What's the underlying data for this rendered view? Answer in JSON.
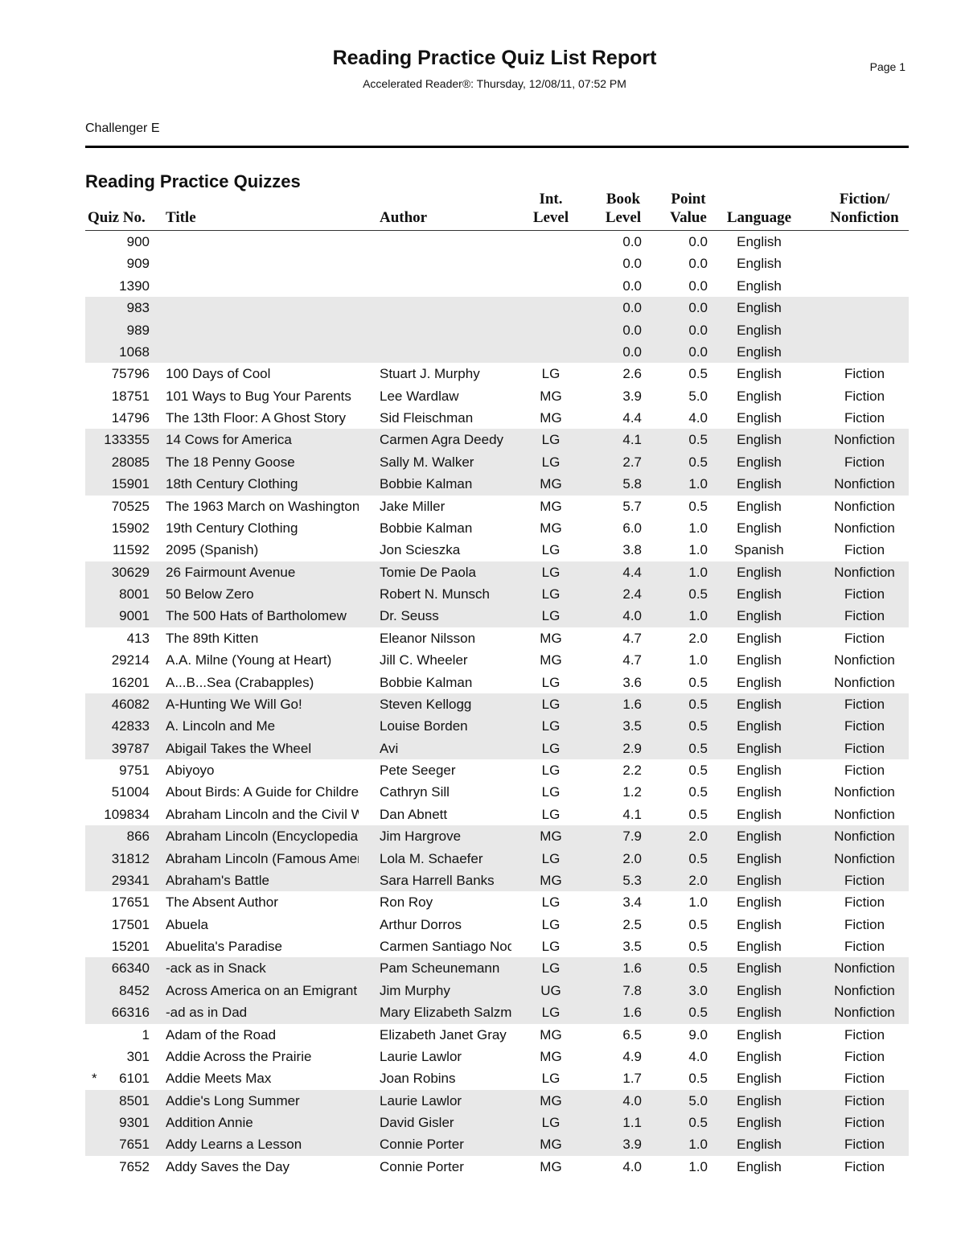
{
  "report": {
    "title": "Reading Practice Quiz List Report",
    "page": "Page 1",
    "subtitle": "Accelerated Reader®:  Thursday, 12/08/11, 07:52 PM",
    "class_name": "Challenger E",
    "section_title": "Reading Practice Quizzes"
  },
  "columns": {
    "quiz_no": "Quiz No.",
    "title": "Title",
    "author": "Author",
    "int_level": [
      "Int.",
      "Level"
    ],
    "book_level": [
      "Book",
      "Level"
    ],
    "point_value": [
      "Point",
      "Value"
    ],
    "language": "Language",
    "fiction": [
      "Fiction/",
      "Nonfiction"
    ]
  },
  "rows": [
    [
      "",
      "900",
      "",
      "",
      "",
      "0.0",
      "0.0",
      "English",
      ""
    ],
    [
      "",
      "909",
      "",
      "",
      "",
      "0.0",
      "0.0",
      "English",
      ""
    ],
    [
      "",
      "1390",
      "",
      "",
      "",
      "0.0",
      "0.0",
      "English",
      ""
    ],
    [
      "",
      "983",
      "",
      "",
      "",
      "0.0",
      "0.0",
      "English",
      ""
    ],
    [
      "",
      "989",
      "",
      "",
      "",
      "0.0",
      "0.0",
      "English",
      ""
    ],
    [
      "",
      "1068",
      "",
      "",
      "",
      "0.0",
      "0.0",
      "English",
      ""
    ],
    [
      "",
      "75796",
      "100 Days of Cool",
      "Stuart J. Murphy",
      "LG",
      "2.6",
      "0.5",
      "English",
      "Fiction"
    ],
    [
      "",
      "18751",
      "101 Ways to Bug Your Parents",
      "Lee Wardlaw",
      "MG",
      "3.9",
      "5.0",
      "English",
      "Fiction"
    ],
    [
      "",
      "14796",
      "The 13th Floor: A Ghost Story",
      "Sid Fleischman",
      "MG",
      "4.4",
      "4.0",
      "English",
      "Fiction"
    ],
    [
      "",
      "133355",
      "14 Cows for America",
      "Carmen Agra Deedy",
      "LG",
      "4.1",
      "0.5",
      "English",
      "Nonfiction"
    ],
    [
      "",
      "28085",
      "The 18 Penny Goose",
      "Sally M. Walker",
      "LG",
      "2.7",
      "0.5",
      "English",
      "Fiction"
    ],
    [
      "",
      "15901",
      "18th Century Clothing",
      "Bobbie Kalman",
      "MG",
      "5.8",
      "1.0",
      "English",
      "Nonfiction"
    ],
    [
      "",
      "70525",
      "The 1963 March on Washington",
      "Jake Miller",
      "MG",
      "5.7",
      "0.5",
      "English",
      "Nonfiction"
    ],
    [
      "",
      "15902",
      "19th Century Clothing",
      "Bobbie Kalman",
      "MG",
      "6.0",
      "1.0",
      "English",
      "Nonfiction"
    ],
    [
      "",
      "11592",
      "2095 (Spanish)",
      "Jon Scieszka",
      "LG",
      "3.8",
      "1.0",
      "Spanish",
      "Fiction"
    ],
    [
      "",
      "30629",
      "26 Fairmount Avenue",
      "Tomie De Paola",
      "LG",
      "4.4",
      "1.0",
      "English",
      "Nonfiction"
    ],
    [
      "",
      "8001",
      "50 Below Zero",
      "Robert N. Munsch",
      "LG",
      "2.4",
      "0.5",
      "English",
      "Fiction"
    ],
    [
      "",
      "9001",
      "The 500 Hats of Bartholomew",
      "Dr. Seuss",
      "LG",
      "4.0",
      "1.0",
      "English",
      "Fiction"
    ],
    [
      "",
      "413",
      "The 89th Kitten",
      "Eleanor Nilsson",
      "MG",
      "4.7",
      "2.0",
      "English",
      "Fiction"
    ],
    [
      "",
      "29214",
      "A.A. Milne (Young at Heart)",
      "Jill C. Wheeler",
      "MG",
      "4.7",
      "1.0",
      "English",
      "Nonfiction"
    ],
    [
      "",
      "16201",
      "A...B...Sea (Crabapples)",
      "Bobbie Kalman",
      "LG",
      "3.6",
      "0.5",
      "English",
      "Nonfiction"
    ],
    [
      "",
      "46082",
      "A-Hunting We Will Go!",
      "Steven Kellogg",
      "LG",
      "1.6",
      "0.5",
      "English",
      "Fiction"
    ],
    [
      "",
      "42833",
      "A. Lincoln and Me",
      "Louise Borden",
      "LG",
      "3.5",
      "0.5",
      "English",
      "Fiction"
    ],
    [
      "",
      "39787",
      "Abigail Takes the Wheel",
      "Avi",
      "LG",
      "2.9",
      "0.5",
      "English",
      "Fiction"
    ],
    [
      "",
      "9751",
      "Abiyoyo",
      "Pete Seeger",
      "LG",
      "2.2",
      "0.5",
      "English",
      "Fiction"
    ],
    [
      "",
      "51004",
      "About Birds: A Guide for Children",
      "Cathryn Sill",
      "LG",
      "1.2",
      "0.5",
      "English",
      "Nonfiction"
    ],
    [
      "",
      "109834",
      "Abraham Lincoln and the Civil War",
      "Dan Abnett",
      "LG",
      "4.1",
      "0.5",
      "English",
      "Nonfiction"
    ],
    [
      "",
      "866",
      "Abraham Lincoln (Encyclopedia",
      "Jim Hargrove",
      "MG",
      "7.9",
      "2.0",
      "English",
      "Nonfiction"
    ],
    [
      "",
      "31812",
      "Abraham Lincoln (Famous Americans",
      "Lola M. Schaefer",
      "LG",
      "2.0",
      "0.5",
      "English",
      "Nonfiction"
    ],
    [
      "",
      "29341",
      "Abraham's Battle",
      "Sara Harrell Banks",
      "MG",
      "5.3",
      "2.0",
      "English",
      "Fiction"
    ],
    [
      "",
      "17651",
      "The Absent Author",
      "Ron Roy",
      "LG",
      "3.4",
      "1.0",
      "English",
      "Fiction"
    ],
    [
      "",
      "17501",
      "Abuela",
      "Arthur Dorros",
      "LG",
      "2.5",
      "0.5",
      "English",
      "Fiction"
    ],
    [
      "",
      "15201",
      "Abuelita's Paradise",
      "Carmen Santiago Nodar",
      "LG",
      "3.5",
      "0.5",
      "English",
      "Fiction"
    ],
    [
      "",
      "66340",
      "-ack as in Snack",
      "Pam Scheunemann",
      "LG",
      "1.6",
      "0.5",
      "English",
      "Nonfiction"
    ],
    [
      "",
      "8452",
      "Across America on an Emigrant",
      "Jim Murphy",
      "UG",
      "7.8",
      "3.0",
      "English",
      "Nonfiction"
    ],
    [
      "",
      "66316",
      "-ad as in Dad",
      "Mary Elizabeth Salzmann",
      "LG",
      "1.6",
      "0.5",
      "English",
      "Nonfiction"
    ],
    [
      "",
      "1",
      "Adam of the Road",
      "Elizabeth Janet Gray",
      "MG",
      "6.5",
      "9.0",
      "English",
      "Fiction"
    ],
    [
      "",
      "301",
      "Addie Across the Prairie",
      "Laurie Lawlor",
      "MG",
      "4.9",
      "4.0",
      "English",
      "Fiction"
    ],
    [
      "*",
      "6101",
      "Addie Meets Max",
      "Joan Robins",
      "LG",
      "1.7",
      "0.5",
      "English",
      "Fiction"
    ],
    [
      "",
      "8501",
      "Addie's Long Summer",
      "Laurie Lawlor",
      "MG",
      "4.0",
      "5.0",
      "English",
      "Fiction"
    ],
    [
      "",
      "9301",
      "Addition Annie",
      "David Gisler",
      "LG",
      "1.1",
      "0.5",
      "English",
      "Fiction"
    ],
    [
      "",
      "7651",
      "Addy Learns a Lesson",
      "Connie Porter",
      "MG",
      "3.9",
      "1.0",
      "English",
      "Fiction"
    ],
    [
      "",
      "7652",
      "Addy Saves the Day",
      "Connie Porter",
      "MG",
      "4.0",
      "1.0",
      "English",
      "Fiction"
    ]
  ]
}
